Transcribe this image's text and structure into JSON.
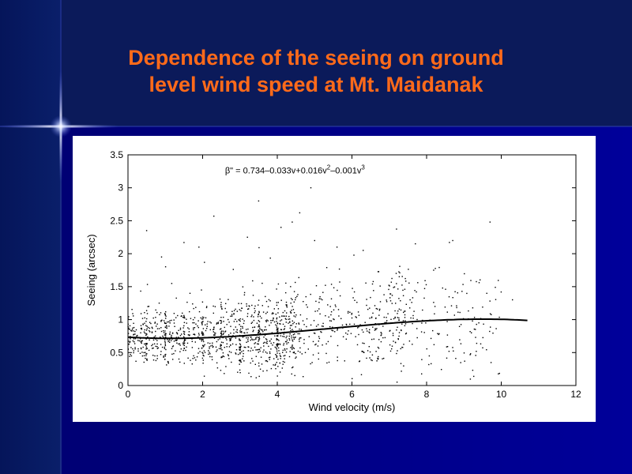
{
  "slide": {
    "title_line1": "Dependence of the seeing on ground",
    "title_line2": "level wind speed at Mt. Maidanak",
    "colors": {
      "title": "#ff6a1a",
      "background": "#00008a",
      "panel": "#ffffff"
    }
  },
  "chart_data": {
    "type": "scatter",
    "title": "",
    "xlabel": "Wind velocity (m/s)",
    "ylabel": "Seeing (arcsec)",
    "xlim": [
      0,
      12
    ],
    "ylim": [
      0,
      3.5
    ],
    "xticks": [
      "0",
      "2",
      "4",
      "6",
      "8",
      "10",
      "12"
    ],
    "yticks": [
      "0",
      "0.5",
      "1",
      "1.5",
      "2",
      "2.5",
      "3",
      "3.5"
    ],
    "annotation": {
      "prefix": "β\" = 0.734–0.033v+0.016v",
      "sup1": "2",
      "mid": "–0.001v",
      "sup2": "3"
    },
    "fit": {
      "name": "polynomial fit",
      "coefficients": [
        0.734,
        -0.033,
        0.016,
        -0.001
      ],
      "x_range": [
        0,
        10.7
      ]
    },
    "scatter_outliers": [
      {
        "x": 0.5,
        "y": 2.35
      },
      {
        "x": 0.9,
        "y": 1.95
      },
      {
        "x": 1.5,
        "y": 2.17
      },
      {
        "x": 2.3,
        "y": 2.57
      },
      {
        "x": 3.5,
        "y": 2.8
      },
      {
        "x": 4.1,
        "y": 2.4
      },
      {
        "x": 4.4,
        "y": 2.48
      },
      {
        "x": 4.6,
        "y": 2.62
      },
      {
        "x": 4.9,
        "y": 3.0
      },
      {
        "x": 5.0,
        "y": 2.2
      },
      {
        "x": 3.2,
        "y": 2.25
      },
      {
        "x": 1.9,
        "y": 2.1
      },
      {
        "x": 9.7,
        "y": 2.48
      },
      {
        "x": 10.3,
        "y": 1.3
      },
      {
        "x": 8.7,
        "y": 2.2
      },
      {
        "x": 7.7,
        "y": 2.15
      },
      {
        "x": 9.4,
        "y": 0.95
      },
      {
        "x": 9.2,
        "y": 0.8
      },
      {
        "x": 8.2,
        "y": 0.62
      },
      {
        "x": 5.6,
        "y": 2.1
      },
      {
        "x": 6.3,
        "y": 2.05
      }
    ],
    "grid": false,
    "legend": "none"
  }
}
